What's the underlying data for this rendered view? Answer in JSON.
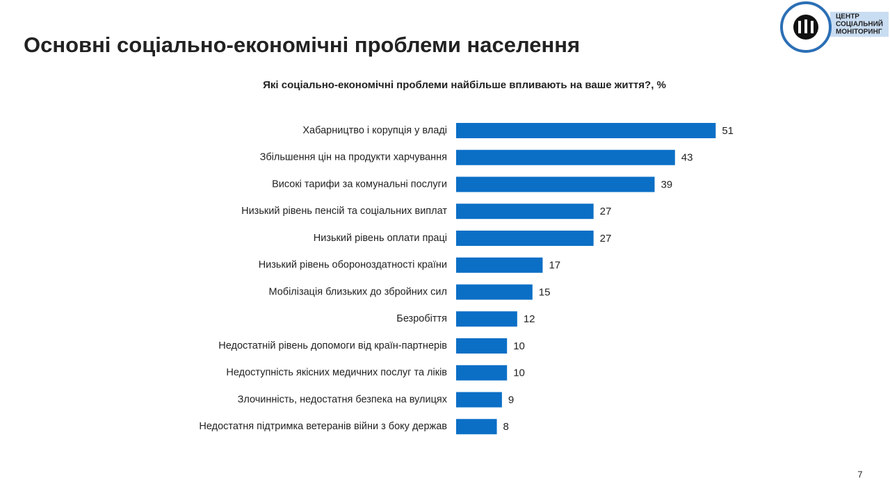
{
  "chart_data": {
    "type": "bar",
    "orientation": "horizontal",
    "title": "Основні соціально-економічні проблеми населення",
    "subtitle": "Які соціально-економічні проблеми найбільше впливають на ваше життя?, %",
    "categories": [
      "Хабарництво і корупція у владі",
      "Збільшення цін на продукти харчування",
      "Високі тарифи за комунальні послуги",
      "Низький рівень пенсій та соціальних виплат",
      "Низький рівень оплати праці",
      "Низький рівень обороноздатності країни",
      "Мобілізація близьких до збройних сил",
      "Безробіття",
      "Недостатній рівень допомоги від країн-партнерів",
      "Недоступність якісних медичних послуг та ліків",
      "Злочинність, недостатня безпека на вулицях",
      "Недостатня підтримка ветеранів війни з боку держав"
    ],
    "values": [
      51,
      43,
      39,
      27,
      27,
      17,
      15,
      12,
      10,
      10,
      9,
      8
    ],
    "color": "#0b6fc6"
  },
  "logo": {
    "lines": [
      "ЦЕНТР",
      "СОЦІАЛЬНИЙ",
      "МОНІТОРИНГ"
    ]
  },
  "page_number": "7"
}
